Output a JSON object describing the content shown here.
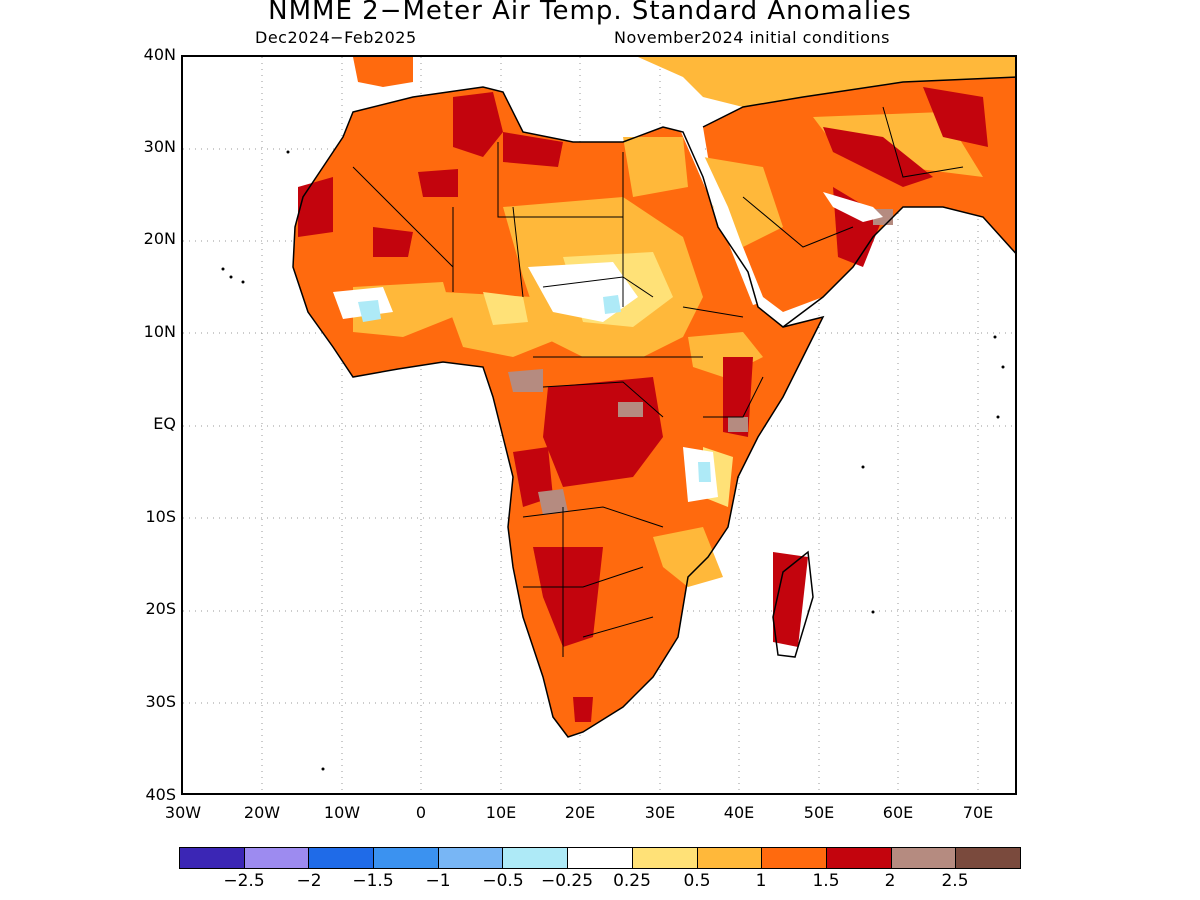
{
  "title": "NMME 2−Meter Air Temp. Standard Anomalies",
  "subtitle_left": "Dec2024−Feb2025",
  "subtitle_right": "November2024 initial conditions",
  "map": {
    "region": "Africa",
    "lat_labels": [
      "40N",
      "30N",
      "20N",
      "10N",
      "EQ",
      "10S",
      "20S",
      "30S",
      "40S"
    ],
    "lon_labels": [
      "30W",
      "20W",
      "10W",
      "0",
      "10E",
      "20E",
      "30E",
      "40E",
      "50E",
      "60E",
      "70E"
    ],
    "gridlines": true
  },
  "colorbar": {
    "colors": [
      "#3b26b5",
      "#9d8bf0",
      "#1f6be8",
      "#3b92f0",
      "#78b6f5",
      "#aeeaf7",
      "#ffffff",
      "#ffe177",
      "#ffb83a",
      "#ff6a0e",
      "#c3040d",
      "#b58b80",
      "#7a4a3d"
    ],
    "labels": [
      "−2.5",
      "−2",
      "−1.5",
      "−1",
      "−0.5",
      "−0.25",
      "0.25",
      "0.5",
      "1",
      "1.5",
      "2",
      "2.5"
    ]
  }
}
